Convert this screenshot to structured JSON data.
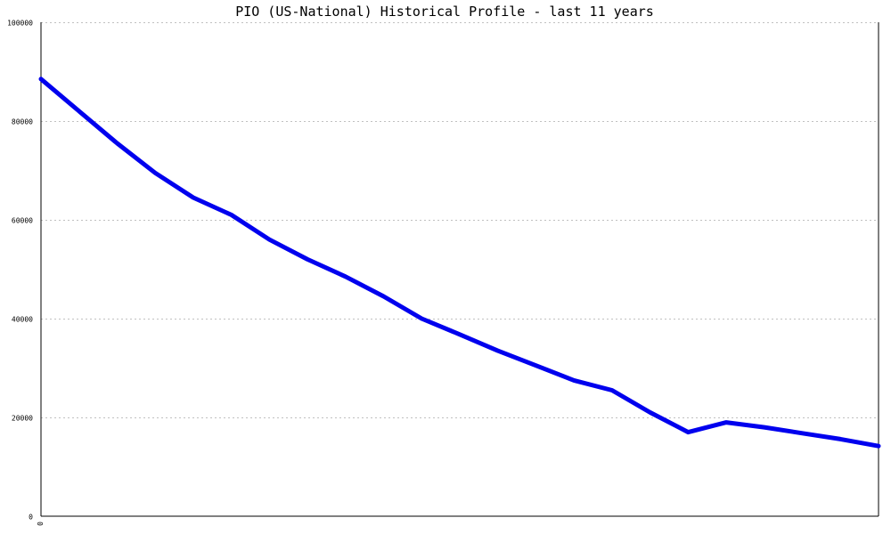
{
  "chart_data": {
    "type": "line",
    "title": "PIO (US-National) Historical Profile - last 11 years",
    "xlabel": "",
    "ylabel": "",
    "x_tick_labels": [
      "0"
    ],
    "y_ticks": [
      0,
      20000,
      40000,
      60000,
      80000,
      100000
    ],
    "y_tick_labels": [
      "0",
      "20000",
      "40000",
      "60000",
      "80000",
      "100000"
    ],
    "ylim": [
      0,
      100000
    ],
    "grid": true,
    "series_color": "#0000ee",
    "series": [
      {
        "x": [
          0,
          0.1,
          0.2,
          0.3,
          0.4,
          0.5,
          0.6,
          0.7,
          0.8,
          0.9,
          1.0,
          1.1,
          1.2,
          1.3,
          1.4,
          1.5,
          1.6,
          1.7,
          1.8,
          1.9,
          2.0,
          2.1,
          2.2
        ],
        "values": [
          88500,
          82000,
          75500,
          69500,
          64500,
          61000,
          56000,
          52000,
          48500,
          44500,
          40000,
          36800,
          33500,
          30500,
          27500,
          25500,
          21000,
          17000,
          19000,
          18000,
          16800,
          15600,
          14200
        ]
      }
    ]
  }
}
